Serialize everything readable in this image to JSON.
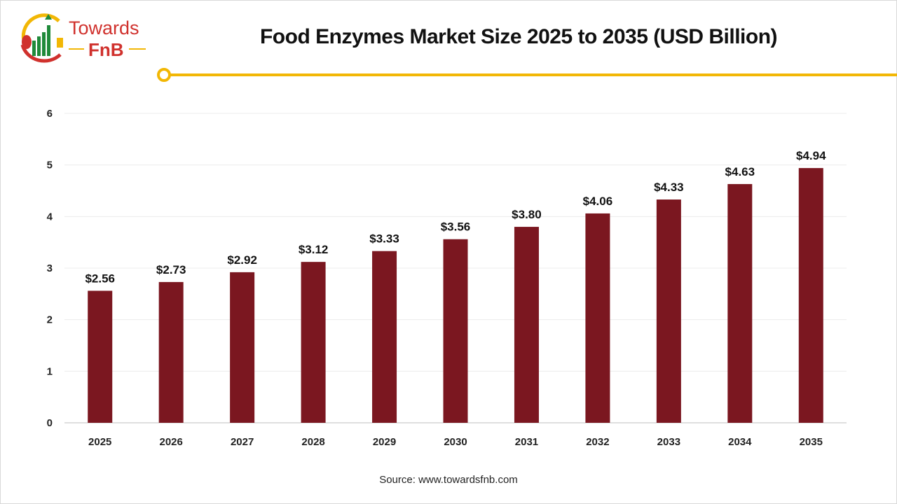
{
  "logo": {
    "line1": "Towards",
    "line2": "FnB"
  },
  "colors": {
    "bar": "#7b1720",
    "accent": "#f2b705",
    "logo_red": "#d0312d",
    "logo_green": "#1f8a3a"
  },
  "source": "Source: www.towardsfnb.com",
  "chart_data": {
    "type": "bar",
    "title": "Food Enzymes Market Size 2025 to 2035 (USD Billion)",
    "categories": [
      "2025",
      "2026",
      "2027",
      "2028",
      "2029",
      "2030",
      "2031",
      "2032",
      "2033",
      "2034",
      "2035"
    ],
    "values": [
      2.56,
      2.73,
      2.92,
      3.12,
      3.33,
      3.56,
      3.8,
      4.06,
      4.33,
      4.63,
      4.94
    ],
    "data_labels": [
      "$2.56",
      "$2.73",
      "$2.92",
      "$3.12",
      "$3.33",
      "$3.56",
      "$3.80",
      "$4.06",
      "$4.33",
      "$4.63",
      "$4.94"
    ],
    "yticks": [
      "0",
      "1",
      "2",
      "3",
      "4",
      "5",
      "6"
    ],
    "ylim": [
      0,
      6
    ],
    "xlabel": "",
    "ylabel": "",
    "grid": true,
    "legend": "none"
  }
}
